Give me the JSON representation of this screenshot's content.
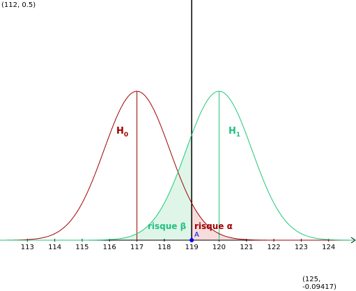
{
  "corners": {
    "top_left": "(112, 0.5)",
    "bottom_right": "(125, -0.09417)"
  },
  "colors": {
    "h0": "#a00000",
    "h1": "#1ec878",
    "h1_text": "#20c080",
    "fill_beta": "#dff5e8",
    "fill_alpha": "#f7dcdc",
    "axis": "#000000",
    "point": "#0000ff"
  },
  "labels": {
    "h0": "H",
    "h0_sub": "0",
    "h1": "H",
    "h1_sub": "1",
    "risque_beta": "risque β",
    "risque_alpha": "risque α",
    "point_a": "A"
  },
  "chart_data": {
    "type": "line",
    "x_ticks": [
      "113",
      "114",
      "115",
      "116",
      "117",
      "118",
      "119",
      "120",
      "121",
      "122",
      "123",
      "124"
    ],
    "xlim": [
      112,
      125
    ],
    "ylim": [
      -0.09417,
      0.5
    ],
    "threshold_x": 119,
    "series": [
      {
        "name": "H0",
        "mean": 117,
        "sd": 1.2,
        "peak_y": 0.31
      },
      {
        "name": "H1",
        "mean": 120,
        "sd": 1.2,
        "peak_y": 0.31
      }
    ]
  }
}
